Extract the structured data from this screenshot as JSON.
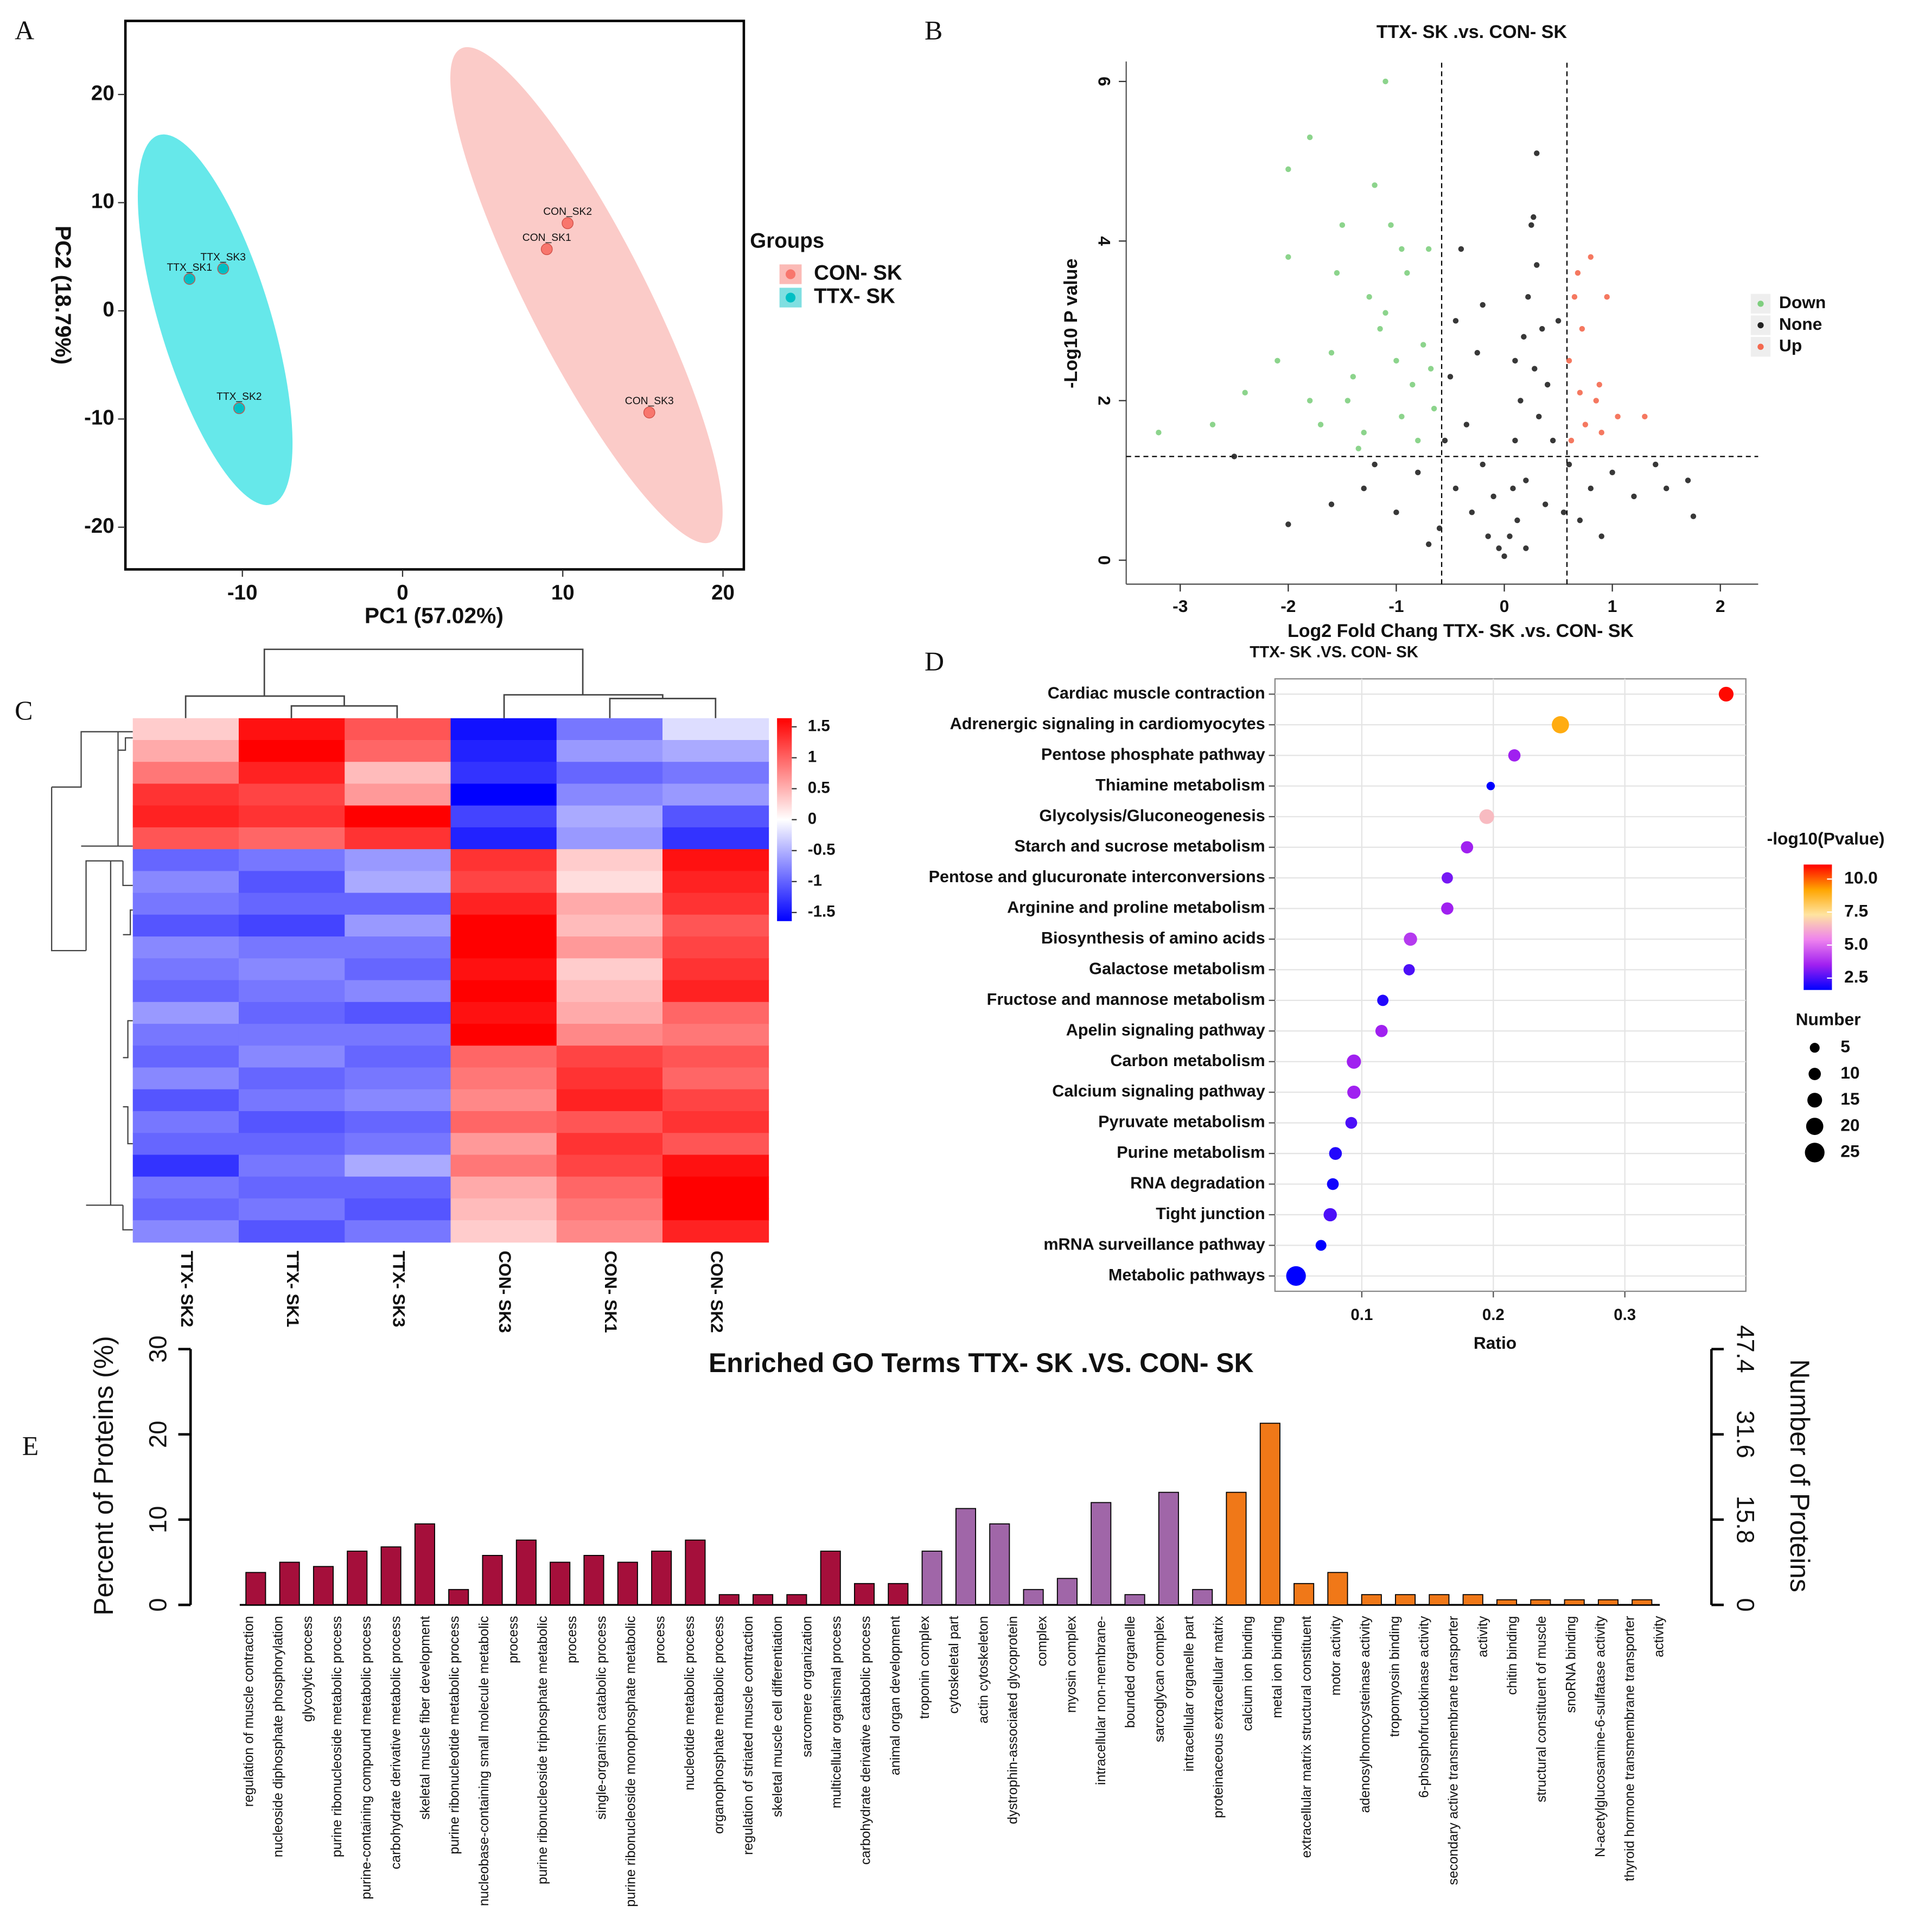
{
  "panel_labels": [
    "A",
    "B",
    "C",
    "D",
    "E"
  ],
  "chart_data": [
    {
      "type": "scatter",
      "x_label": "PC1 (57.02%)",
      "y_label": "PC2 (18.79%)",
      "legend_title": "Groups",
      "xlim": [
        -17.3,
        21.3
      ],
      "xticks": [
        -10,
        0,
        10,
        20
      ],
      "ylim": [
        -23.9,
        26.8
      ],
      "yticks": [
        -20,
        -10,
        0,
        10,
        20
      ],
      "series": [
        {
          "name": "CON- SK",
          "color": "#f8766d",
          "labels": [
            "CON_SK1",
            "CON_SK2",
            "CON_SK3"
          ],
          "x": [
            9.0,
            10.3,
            15.4
          ],
          "values": [
            5.7,
            8.1,
            -9.4
          ]
        },
        {
          "name": "TTX- SK",
          "color": "#00bfc4",
          "labels": [
            "TTX_SK1",
            "TTX_SK2",
            "TTX_SK3"
          ],
          "x": [
            -13.3,
            -10.2,
            -11.2
          ],
          "values": [
            2.95,
            -9.0,
            3.9
          ]
        }
      ]
    },
    {
      "type": "scatter",
      "title": "TTX- SK .vs. CON- SK",
      "x_label": "Log2 Fold Chang TTX- SK .vs. CON- SK",
      "y_label": "-Log10 P value",
      "xlim": [
        -3.5,
        2.35
      ],
      "xticks": [
        -3,
        -2,
        -1,
        0,
        1,
        2
      ],
      "ylim": [
        -0.3,
        6.25
      ],
      "yticks": [
        0,
        2,
        4,
        6
      ],
      "fc_threshold": [
        -0.58,
        0.58
      ],
      "p_threshold": 1.3,
      "series": [
        {
          "name": "Down",
          "color": "#7fcf7f",
          "x": [
            -3.2,
            -2.7,
            -2.4,
            -2.1,
            -2,
            -2,
            -1.8,
            -1.7,
            -1.6,
            -1.55,
            -1.5,
            -1.45,
            -1.4,
            -1.3,
            -1.25,
            -1.2,
            -1.15,
            -1.1,
            -1.05,
            -1.0,
            -0.95,
            -0.9,
            -0.85,
            -0.8,
            -0.75,
            -0.7,
            -0.65,
            -1.1,
            -1.8,
            -1.35,
            -0.95,
            -0.68
          ],
          "values": [
            1.6,
            1.7,
            2.1,
            2.5,
            4.9,
            3.8,
            5.3,
            1.7,
            2.6,
            3.6,
            4.2,
            2.0,
            2.3,
            1.6,
            3.3,
            4.7,
            2.9,
            3.1,
            4.2,
            2.5,
            1.8,
            3.6,
            2.2,
            1.5,
            2.7,
            3.9,
            1.9,
            6.0,
            2.0,
            1.4,
            3.9,
            2.4
          ]
        },
        {
          "name": "None",
          "color": "#222222",
          "x": [
            -2.5,
            -2.0,
            -1.6,
            -1.3,
            -1.0,
            -0.8,
            -0.6,
            -0.55,
            -0.5,
            -0.45,
            -0.4,
            -0.35,
            -0.3,
            -0.25,
            -0.2,
            -0.15,
            -0.1,
            -0.05,
            0,
            0.05,
            0.08,
            0.1,
            0.12,
            0.15,
            0.18,
            0.2,
            0.22,
            0.25,
            0.28,
            0.3,
            0.32,
            0.35,
            0.38,
            0.4,
            0.45,
            0.5,
            0.55,
            0.3,
            0.6,
            0.7,
            0.8,
            1.0,
            1.2,
            1.4,
            1.5,
            1.7,
            1.75,
            0.9,
            -0.7,
            -1.2,
            -0.2,
            0.1,
            0.27,
            -0.45,
            0.2
          ],
          "values": [
            1.3,
            0.45,
            0.7,
            0.9,
            0.6,
            1.1,
            0.4,
            1.5,
            2.3,
            0.9,
            3.9,
            1.7,
            0.6,
            2.6,
            1.2,
            0.3,
            0.8,
            0.15,
            0.05,
            0.3,
            0.9,
            1.5,
            0.5,
            2.0,
            2.8,
            1.0,
            3.3,
            4.2,
            2.4,
            3.7,
            1.8,
            2.9,
            0.7,
            2.2,
            1.5,
            3.0,
            0.6,
            5.1,
            1.2,
            0.5,
            0.9,
            1.1,
            0.8,
            1.2,
            0.9,
            1.0,
            0.55,
            0.3,
            0.2,
            1.2,
            3.2,
            2.5,
            4.3,
            3.0,
            0.15
          ]
        },
        {
          "name": "Up",
          "color": "#f4694f",
          "x": [
            0.6,
            0.65,
            0.7,
            0.75,
            0.8,
            0.85,
            0.9,
            0.95,
            1.05,
            1.3,
            0.62,
            0.72,
            0.88,
            0.68
          ],
          "values": [
            2.5,
            3.3,
            2.1,
            1.7,
            3.8,
            2.0,
            1.6,
            3.3,
            1.8,
            1.8,
            1.5,
            2.9,
            2.2,
            3.6
          ]
        }
      ]
    },
    {
      "type": "heatmap",
      "columns": [
        "TTX- SK2",
        "TTX- SK1",
        "TTX- SK3",
        "CON- SK3",
        "CON- SK1",
        "CON- SK2"
      ],
      "clim": [
        -1.5,
        1.5
      ],
      "cticks": [
        1.5,
        1,
        0.5,
        0,
        -0.5,
        -1,
        -1.5
      ],
      "colors": [
        "#0000ff",
        "#ffffff",
        "#ff0000"
      ],
      "values": [
        [
          0.3,
          1.4,
          1.0,
          -1.4,
          -0.8,
          -0.2
        ],
        [
          0.5,
          1.5,
          0.9,
          -1.3,
          -0.6,
          -0.5
        ],
        [
          0.8,
          1.3,
          0.4,
          -1.2,
          -0.9,
          -0.8
        ],
        [
          1.2,
          1.1,
          0.6,
          -1.5,
          -0.7,
          -0.6
        ],
        [
          1.3,
          1.2,
          1.5,
          -1.1,
          -0.5,
          -1.0
        ],
        [
          1.0,
          0.9,
          1.2,
          -1.3,
          -0.6,
          -1.2
        ],
        [
          -0.9,
          -0.8,
          -0.6,
          1.2,
          0.3,
          1.4
        ],
        [
          -0.7,
          -1.0,
          -0.5,
          1.1,
          0.2,
          1.3
        ],
        [
          -0.8,
          -0.9,
          -0.9,
          1.3,
          0.5,
          1.2
        ],
        [
          -1.0,
          -1.1,
          -0.6,
          1.5,
          0.4,
          1.0
        ],
        [
          -0.7,
          -0.8,
          -0.8,
          1.5,
          0.6,
          1.1
        ],
        [
          -0.8,
          -0.7,
          -0.9,
          1.4,
          0.3,
          1.2
        ],
        [
          -0.9,
          -0.8,
          -0.7,
          1.5,
          0.4,
          1.3
        ],
        [
          -0.6,
          -0.9,
          -1.0,
          1.4,
          0.5,
          0.9
        ],
        [
          -0.8,
          -0.8,
          -0.8,
          1.5,
          0.7,
          0.8
        ],
        [
          -0.9,
          -0.7,
          -0.9,
          0.9,
          1.1,
          1.0
        ],
        [
          -0.7,
          -0.9,
          -0.8,
          0.8,
          1.2,
          0.9
        ],
        [
          -1.0,
          -0.8,
          -0.7,
          0.7,
          1.3,
          1.1
        ],
        [
          -0.8,
          -1.0,
          -0.9,
          0.9,
          1.0,
          1.2
        ],
        [
          -0.9,
          -0.9,
          -0.8,
          0.6,
          1.2,
          1.0
        ],
        [
          -1.2,
          -0.8,
          -0.5,
          0.8,
          1.1,
          1.4
        ],
        [
          -0.8,
          -0.9,
          -0.9,
          0.5,
          0.9,
          1.5
        ],
        [
          -0.9,
          -0.8,
          -1.0,
          0.4,
          0.8,
          1.5
        ],
        [
          -0.7,
          -1.0,
          -0.8,
          0.3,
          0.7,
          1.3
        ]
      ]
    },
    {
      "type": "bubble",
      "title": "TTX- SK .VS. CON- SK",
      "x_label": "Ratio",
      "color_title": "-log10(Pvalue)",
      "size_title": "Number",
      "categories": [
        "Cardiac muscle contraction",
        "Adrenergic signaling in cardiomyocytes",
        "Pentose phosphate pathway",
        "Thiamine metabolism",
        "Glycolysis/Gluconeogenesis",
        "Starch and sucrose metabolism",
        "Pentose and glucuronate interconversions",
        "Arginine and proline metabolism",
        "Biosynthesis of amino acids",
        "Galactose metabolism",
        "Fructose and mannose metabolism",
        "Apelin signaling pathway",
        "Carbon metabolism",
        "Calcium signaling pathway",
        "Pyruvate metabolism",
        "Purine metabolism",
        "RNA degradation",
        "Tight junction",
        "mRNA surveillance pathway",
        "Metabolic pathways"
      ],
      "values": [
        0.377,
        0.251,
        0.216,
        0.198,
        0.195,
        0.18,
        0.165,
        0.165,
        0.137,
        0.136,
        0.116,
        0.115,
        0.094,
        0.094,
        0.092,
        0.08,
        0.078,
        0.076,
        0.069,
        0.05
      ],
      "pvalues": [
        11,
        9,
        3.5,
        1.5,
        6.5,
        3.5,
        3,
        3.5,
        4,
        2.5,
        2,
        3.5,
        3.5,
        3.5,
        2.5,
        2,
        1.8,
        2.5,
        1.5,
        1.2
      ],
      "numbers": [
        15,
        20,
        10,
        2,
        15,
        10,
        8,
        10,
        12,
        8,
        8,
        10,
        14,
        12,
        9,
        11,
        9,
        12,
        7,
        25
      ],
      "xlim": [
        0.034,
        0.392
      ],
      "xticks": [
        0.1,
        0.2,
        0.3
      ],
      "clim": [
        1.6,
        11.1
      ],
      "cticks": [
        {
          "value": 10,
          "label": "10.0"
        },
        7.5,
        {
          "value": 5,
          "label": "5.0"
        },
        2.5
      ],
      "colors": [
        "#0000ff",
        "#a020f0",
        "#ee82ee",
        "#ffe4a0",
        "#ffa500",
        "#ff0000"
      ],
      "size_ticks": [
        5,
        10,
        15,
        20,
        25
      ]
    },
    {
      "type": "bar",
      "title": "Enriched GO Terms TTX- SK .VS. CON- SK",
      "y_label": "Percent of Proteins (%)",
      "y2_label": "Number of Proteins",
      "ylim": [
        0,
        30
      ],
      "yticks": [
        0,
        10,
        20,
        30
      ],
      "y2lim": [
        0,
        47.4
      ],
      "y2ticks": [
        0,
        15.8,
        31.6,
        47.4
      ],
      "values": [
        3.8,
        5,
        4.5,
        6.3,
        6.8,
        9.5,
        1.8,
        5.8,
        7.6,
        5,
        5.8,
        5,
        6.3,
        7.6,
        1.2,
        1.2,
        1.2,
        6.3,
        2.5,
        2.5,
        6.3,
        11.3,
        9.5,
        1.8,
        3.1,
        12,
        1.2,
        13.2,
        1.8,
        13.2,
        21.3,
        2.5,
        3.8,
        1.2,
        1.2,
        1.2,
        1.2,
        0.6,
        0.6,
        0.6,
        0.6,
        0.6
      ],
      "bar_colors": [
        "#a50f3b",
        "#a50f3b",
        "#a50f3b",
        "#a50f3b",
        "#a50f3b",
        "#a50f3b",
        "#a50f3b",
        "#a50f3b",
        "#a50f3b",
        "#a50f3b",
        "#a50f3b",
        "#a50f3b",
        "#a50f3b",
        "#a50f3b",
        "#a50f3b",
        "#a50f3b",
        "#a50f3b",
        "#a50f3b",
        "#a50f3b",
        "#a50f3b",
        "#a066a8",
        "#a066a8",
        "#a066a8",
        "#a066a8",
        "#a066a8",
        "#a066a8",
        "#a066a8",
        "#a066a8",
        "#a066a8",
        "#f07818",
        "#f07818",
        "#f07818",
        "#f07818",
        "#f07818",
        "#f07818",
        "#f07818",
        "#f07818",
        "#f07818",
        "#f07818",
        "#f07818",
        "#f07818",
        "#f07818"
      ],
      "x_labels": [
        "regulation of muscle contraction",
        "nucleoside diphosphate phosphorylation",
        "glycolytic process",
        "purine ribonucleoside metabolic process",
        "purine-containing compound metabolic process",
        "carbohydrate derivative metabolic process",
        "skeletal muscle fiber development",
        "purine ribonucleotide metabolic process",
        "nucleobase-containing small molecule metabolic",
        "process",
        "purine ribonucleoside triphosphate metabolic",
        "process",
        "single-organism catabolic process",
        "purine ribonucleoside monophosphate metabolic",
        "process",
        "nucleotide metabolic process",
        "organophosphate metabolic process",
        "regulation of striated muscle contraction",
        "skeletal muscle cell differentiation",
        "sarcomere organization",
        "multicellular organismal process",
        "carbohydrate derivative catabolic process",
        "animal organ development",
        "troponin complex",
        "cytoskeletal part",
        "actin cytoskeleton",
        "dystrophin-associated glycoprotein",
        "complex",
        "myosin complex",
        "intracellular non-membrane-",
        "bounded organelle",
        "sarcoglycan complex",
        "intracellular organelle part",
        "proteinaceous extracellular matrix",
        "calcium ion binding",
        "metal ion binding",
        "extracellular matrix structural constituent",
        "motor activity",
        "adenosylhomocysteinase activity",
        "tropomyosin binding",
        "6-phosphofructokinase activity",
        "secondary active transmembrane transporter",
        "activity",
        "chitin binding",
        "structural constituent of muscle",
        "snoRNA binding",
        "N-acetylglucosamine-6-sulfatase activity",
        "thyroid hormone transmembrane transporter",
        "activity"
      ]
    }
  ]
}
